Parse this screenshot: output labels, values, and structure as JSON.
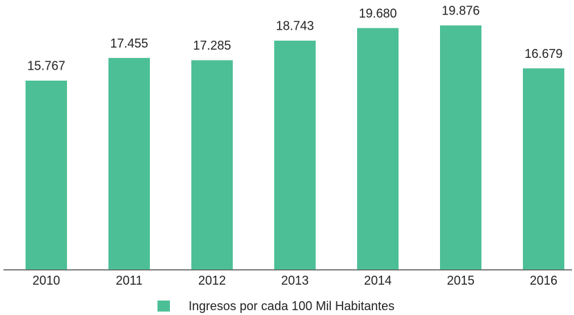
{
  "chart_data": {
    "type": "bar",
    "categories": [
      "2010",
      "2011",
      "2012",
      "2013",
      "2014",
      "2015",
      "2016"
    ],
    "series": [
      {
        "name": "Ingresos por cada 100 Mil Habitantes",
        "color": "#4dbf96",
        "values": [
          15767,
          17455,
          17285,
          18743,
          19680,
          19876,
          16679
        ],
        "value_labels": [
          "15.767",
          "17.455",
          "17.285",
          "18.743",
          "19.680",
          "19.876",
          "16.679"
        ]
      }
    ],
    "ylim": [
      1700,
      21000
    ]
  }
}
